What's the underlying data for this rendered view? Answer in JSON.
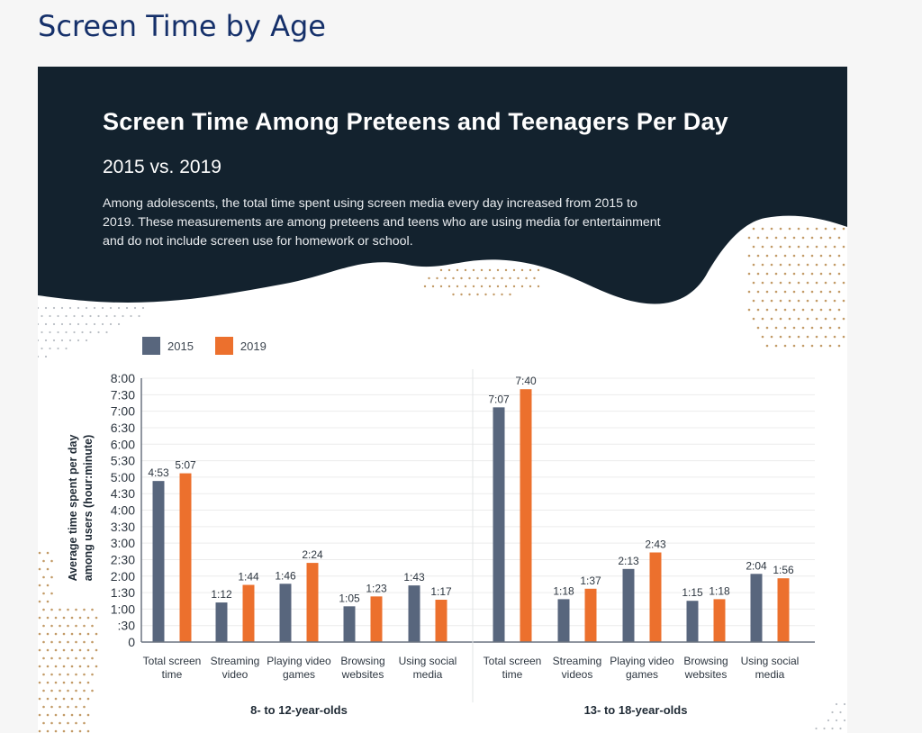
{
  "page": {
    "heading": "Screen Time by Age"
  },
  "infographic": {
    "title": "Screen Time Among Preteens and Teenagers Per Day",
    "subtitle": "2015 vs. 2019",
    "description": "Among adolescents, the total time spent using screen media every day increased from 2015 to 2019. These measurements are among preteens and teens who are using media for entertainment and do not include screen use for homework or school."
  },
  "colors": {
    "header_bg": "#13222e",
    "series_2015": "#58667d",
    "series_2019": "#ec702d",
    "heading": "#15306a",
    "dots": "#c29a66"
  },
  "chart_data": {
    "type": "bar",
    "title": "Screen Time Among Preteens and Teenagers Per Day",
    "subtitle": "2015 vs. 2019",
    "xlabel": "",
    "ylabel": "Average time spent per day among users (hour:minute)",
    "ylabel_lines": [
      "Average time spent per day",
      "among users (hour:minute)"
    ],
    "unit": "minutes",
    "ylim": [
      0,
      480
    ],
    "yticks": [
      0,
      30,
      60,
      90,
      120,
      150,
      180,
      210,
      240,
      270,
      300,
      330,
      360,
      390,
      420,
      450,
      480
    ],
    "ytick_labels": [
      "0",
      ":30",
      "1:00",
      "1:30",
      "2:00",
      "2:30",
      "3:00",
      "3:30",
      "4:00",
      "4:30",
      "5:00",
      "5:30",
      "6:00",
      "6:30",
      "7:00",
      "7:30",
      "8:00"
    ],
    "grid": true,
    "legend": {
      "placement": "top-left",
      "entries": [
        "2015",
        "2019"
      ]
    },
    "series_names": [
      "2015",
      "2019"
    ],
    "groups": [
      {
        "name": "8- to 12-year-olds",
        "categories": [
          [
            "Total screen",
            "time"
          ],
          [
            "Streaming",
            "video"
          ],
          [
            "Playing video",
            "games"
          ],
          [
            "Browsing",
            "websites"
          ],
          [
            "Using social",
            "media"
          ]
        ],
        "series": [
          {
            "name": "2015",
            "values": [
              293,
              72,
              106,
              65,
              103
            ],
            "labels": [
              "4:53",
              "1:12",
              "1:46",
              "1:05",
              "1:43"
            ]
          },
          {
            "name": "2019",
            "values": [
              307,
              104,
              144,
              83,
              77
            ],
            "labels": [
              "5:07",
              "1:44",
              "2:24",
              "1:23",
              "1:17"
            ]
          }
        ]
      },
      {
        "name": "13- to 18-year-olds",
        "categories": [
          [
            "Total screen",
            "time"
          ],
          [
            "Streaming",
            "videos"
          ],
          [
            "Playing video",
            "games"
          ],
          [
            "Browsing",
            "websites"
          ],
          [
            "Using social",
            "media"
          ]
        ],
        "series": [
          {
            "name": "2015",
            "values": [
              427,
              78,
              133,
              75,
              124
            ],
            "labels": [
              "7:07",
              "1:18",
              "2:13",
              "1:15",
              "2:04"
            ]
          },
          {
            "name": "2019",
            "values": [
              460,
              97,
              163,
              78,
              116
            ],
            "labels": [
              "7:40",
              "1:37",
              "2:43",
              "1:18",
              "1:56"
            ]
          }
        ]
      }
    ]
  }
}
